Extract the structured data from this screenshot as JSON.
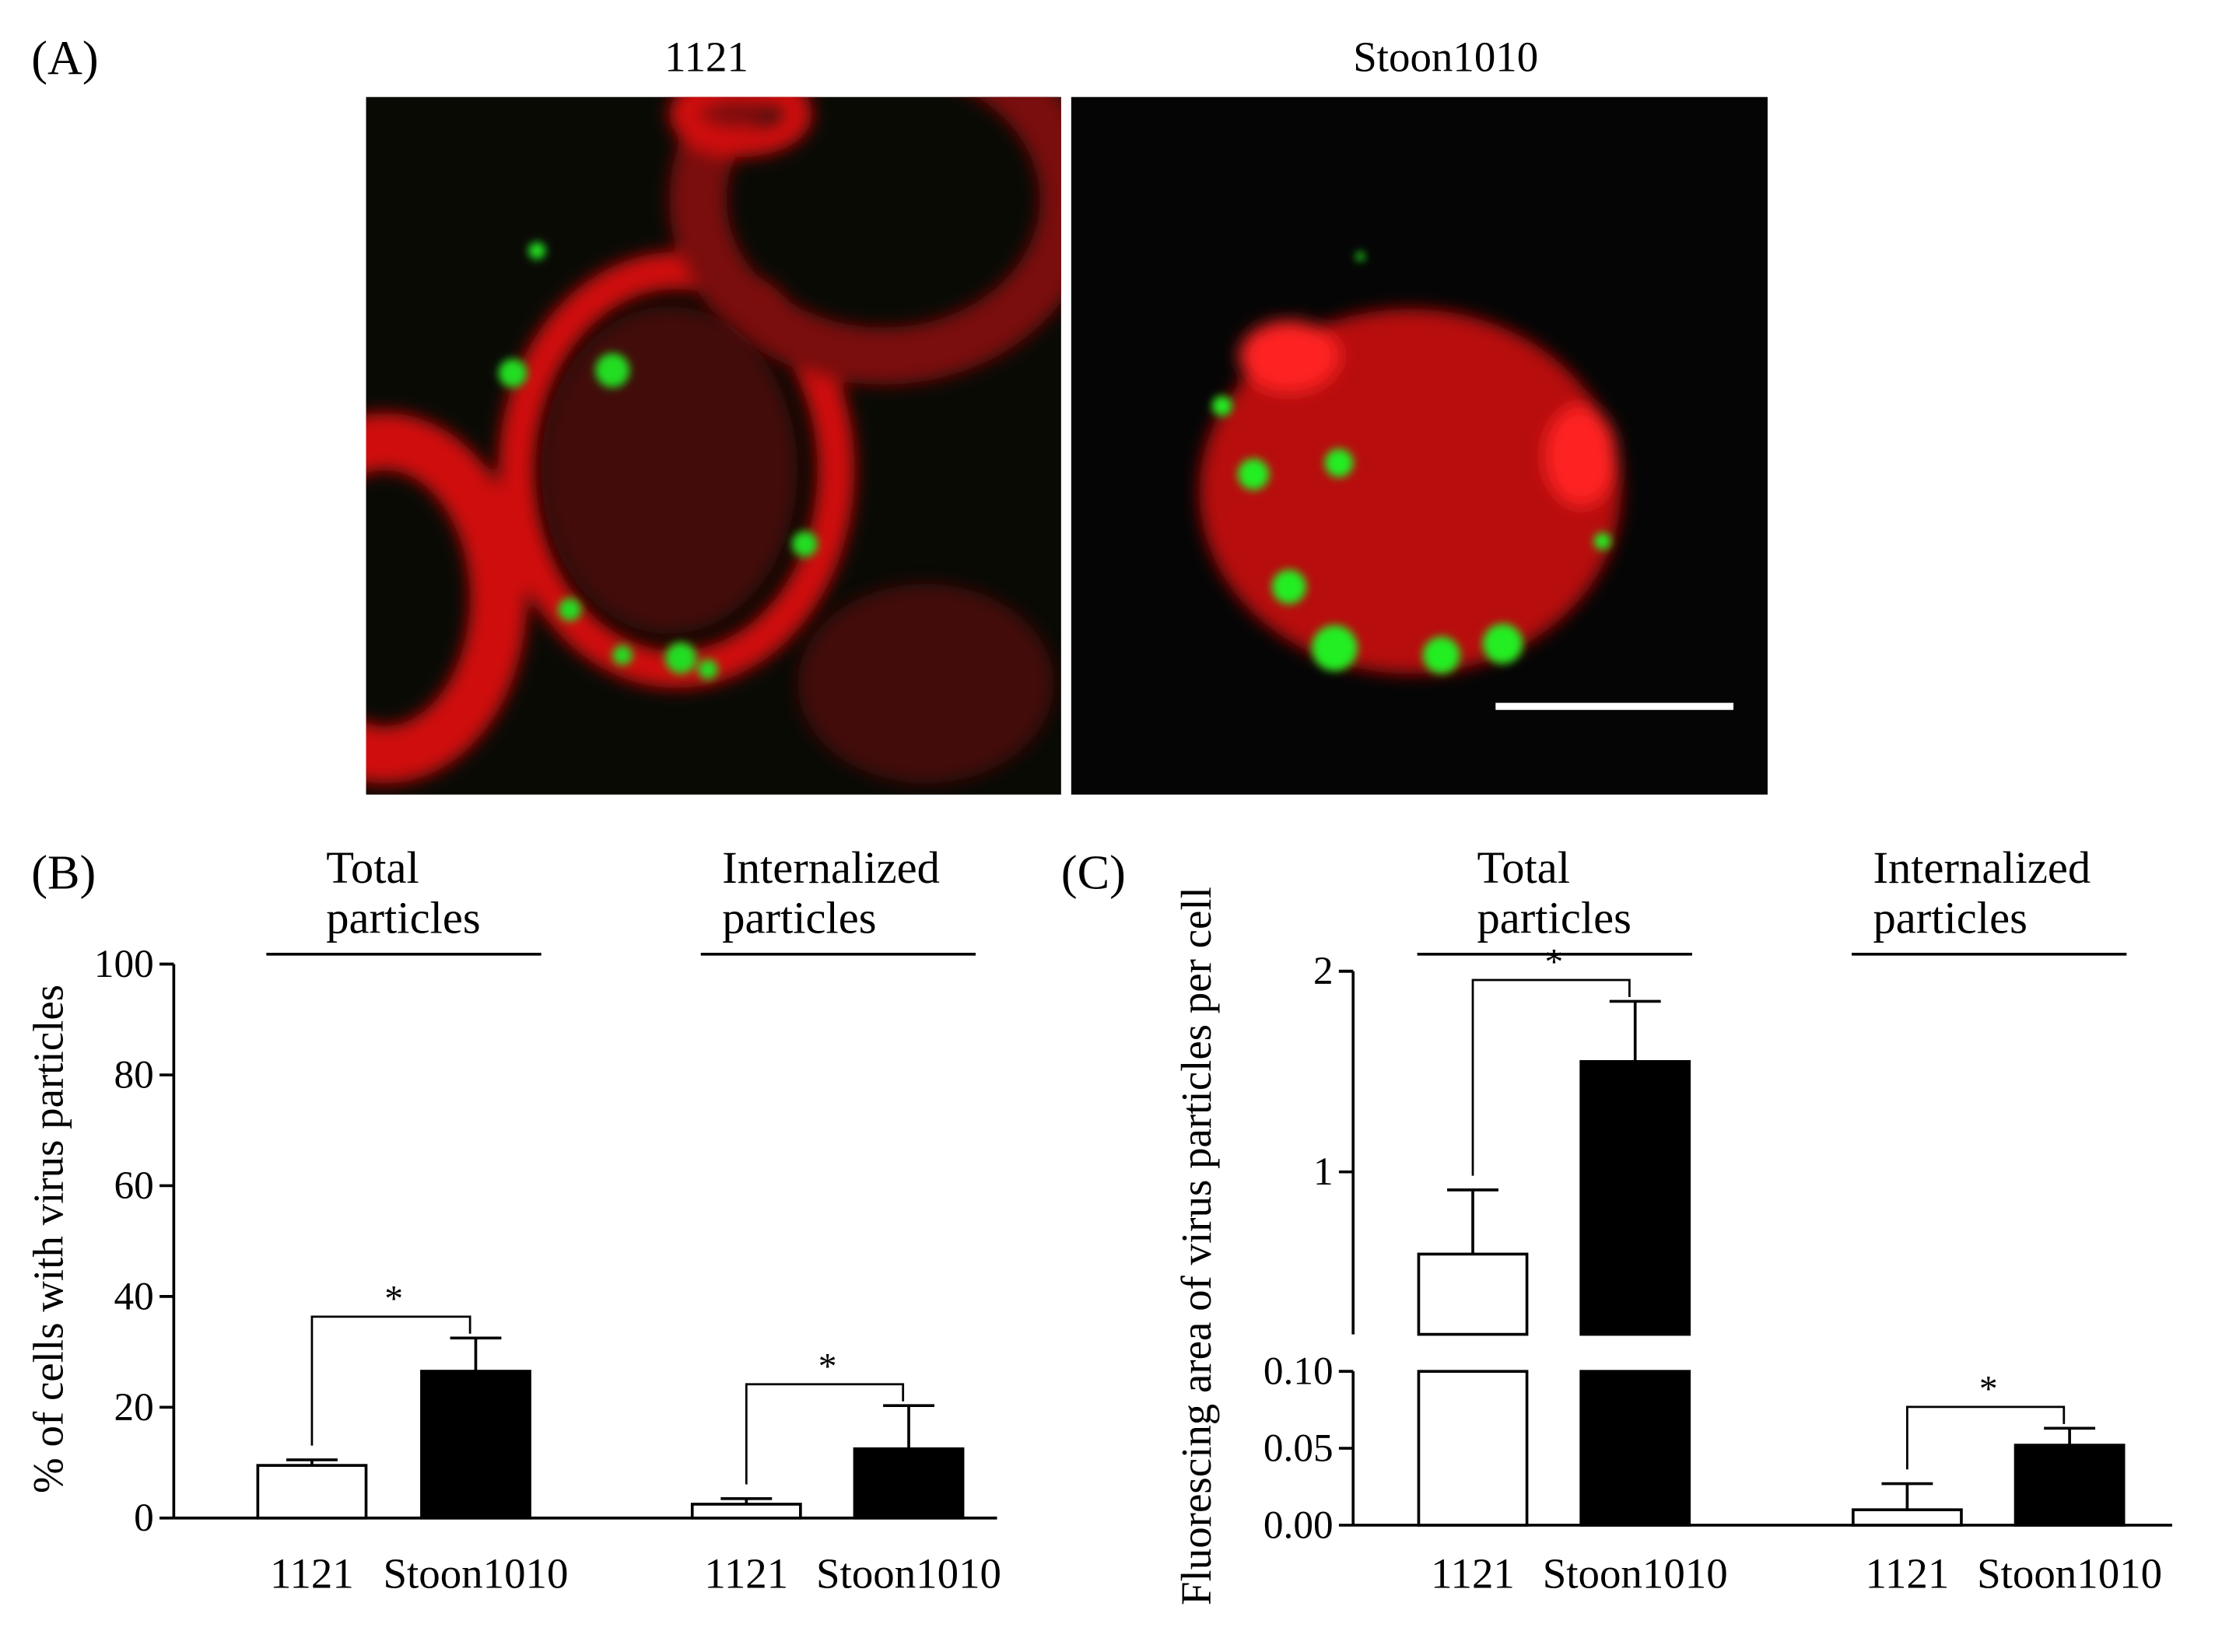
{
  "panel_a": {
    "label": "(A)",
    "image_titles": [
      "1121",
      "Stoon1010"
    ]
  },
  "chart_data": [
    {
      "type": "bar",
      "panel_label": "(B)",
      "ylabel": "% of cells with virus particles",
      "groups": [
        {
          "title_lines": [
            "Total",
            "particles"
          ]
        },
        {
          "title_lines": [
            "Internalized",
            "particles"
          ]
        }
      ],
      "significance": [
        "*",
        "*"
      ],
      "categories": [
        "1121",
        "Stoon1010",
        "1121",
        "Stoon1010"
      ],
      "values": [
        9.5,
        26.5,
        2.5,
        12.5
      ],
      "errors": [
        1,
        6,
        1,
        7.8
      ],
      "colors": [
        "#ffffff",
        "#000000",
        "#ffffff",
        "#000000"
      ],
      "ylim": [
        0,
        100
      ],
      "yticks": [
        0,
        20,
        40,
        60,
        80,
        100
      ]
    },
    {
      "type": "bar",
      "panel_label": "(C)",
      "ylabel": "Fluorescing area of virus particles per cell",
      "groups": [
        {
          "title_lines": [
            "Total",
            "particles"
          ]
        },
        {
          "title_lines": [
            "Internalized",
            "particles"
          ]
        }
      ],
      "significance": [
        "*",
        "*"
      ],
      "categories": [
        "1121",
        "Stoon1010",
        "1121",
        "Stoon1010"
      ],
      "values": [
        0.59,
        1.55,
        0.01,
        0.052
      ],
      "errors": [
        0.32,
        0.3,
        0.017,
        0.011
      ],
      "colors": [
        "#ffffff",
        "#000000",
        "#ffffff",
        "#000000"
      ],
      "y_segments": [
        {
          "ylim": [
            0,
            0.1
          ],
          "yticks": [
            {
              "value": 0,
              "label": "0.00"
            },
            {
              "value": 0.05,
              "label": "0.05"
            },
            {
              "value": 0.1,
              "label": "0.10"
            }
          ]
        },
        {
          "ylim": [
            0.19,
            2
          ],
          "yticks": [
            1,
            2
          ]
        }
      ]
    }
  ]
}
